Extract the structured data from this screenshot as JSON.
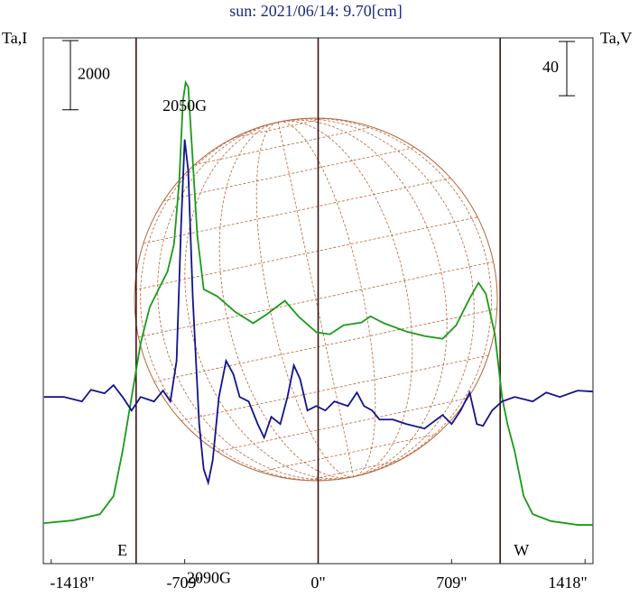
{
  "chart_data": {
    "type": "line",
    "title": "sun: 2021/06/14: 9.70[cm]",
    "ylabel": "Ta,I",
    "y2label": "Ta,V",
    "xlim": [
      -1460,
      1460
    ],
    "ylim": [
      -1200,
      14000
    ],
    "y2lim": [
      -123,
      265
    ],
    "xticks": [
      {
        "value": -1418,
        "label": "-1418\""
      },
      {
        "value": -709,
        "label": "-709\""
      },
      {
        "value": 0,
        "label": "0\""
      },
      {
        "value": 709,
        "label": "709\""
      },
      {
        "value": 1418,
        "label": "1418\""
      }
    ],
    "vlines": [
      -967,
      0,
      967
    ],
    "ta_i_scale": 2000,
    "ta_v_scale": 40,
    "annotations": [
      {
        "text": "2050G",
        "x": -709,
        "y": 12000
      },
      {
        "text": "2090G",
        "x": -580,
        "y": -1650
      },
      {
        "text": "E",
        "x": -1040,
        "y": -860
      },
      {
        "text": "W",
        "x": 1080,
        "y": -860
      }
    ],
    "series": [
      {
        "name": "Ta,I",
        "color": "#1a9a1a",
        "axis": "y",
        "x": [
          -1456,
          -1303,
          -1159,
          -1087,
          -1039,
          -991,
          -943,
          -895,
          -848,
          -800,
          -766,
          -738,
          -718,
          -704,
          -690,
          -671,
          -642,
          -608,
          -536,
          -441,
          -345,
          -273,
          -177,
          -105,
          -10,
          62,
          134,
          230,
          278,
          350,
          469,
          565,
          661,
          733,
          805,
          852,
          891,
          939,
          977,
          1006,
          1044,
          1092,
          1140,
          1236,
          1379,
          1461
        ],
        "values": [
          -30,
          50,
          230,
          750,
          2050,
          3610,
          5170,
          6210,
          6730,
          7250,
          8030,
          9850,
          12190,
          12710,
          12580,
          10890,
          8290,
          6730,
          6530,
          6080,
          5750,
          6010,
          6400,
          5950,
          5490,
          5430,
          5690,
          5770,
          5950,
          5750,
          5510,
          5380,
          5300,
          5690,
          6470,
          6920,
          6600,
          5430,
          3610,
          2830,
          2050,
          750,
          230,
          30,
          -80,
          -80
        ]
      },
      {
        "name": "Ta,V",
        "color": "#10148a",
        "axis": "y2",
        "x": [
          -1456,
          -1351,
          -1255,
          -1207,
          -1135,
          -1087,
          -1039,
          -991,
          -943,
          -872,
          -824,
          -785,
          -752,
          -728,
          -709,
          -690,
          -666,
          -632,
          -608,
          -584,
          -560,
          -527,
          -489,
          -450,
          -417,
          -369,
          -321,
          -287,
          -249,
          -201,
          -163,
          -129,
          -96,
          -57,
          -10,
          38,
          86,
          158,
          206,
          244,
          287,
          326,
          398,
          469,
          565,
          661,
          709,
          757,
          805,
          843,
          876,
          924,
          977,
          1044,
          1140,
          1212,
          1284,
          1379,
          1461
        ],
        "values": [
          0,
          0,
          -3.3,
          5.3,
          2.7,
          8.7,
          0,
          -10,
          0,
          -3.3,
          4.7,
          -3.3,
          26.7,
          126.7,
          190,
          166.7,
          73.3,
          -20,
          -53.3,
          -63.3,
          -46.7,
          0,
          26.7,
          16.7,
          0,
          -3.3,
          -20,
          -30,
          -14.7,
          -20,
          0,
          23.3,
          13.3,
          -10,
          -6.7,
          -10,
          -3.3,
          -6.7,
          3.3,
          -6.7,
          -10,
          -16.7,
          -16.7,
          -20,
          -23.3,
          -13.3,
          -20,
          -10,
          3.3,
          -20,
          -21.3,
          -10,
          -3.3,
          0,
          -3.3,
          3.3,
          0,
          4.7,
          4
        ]
      }
    ]
  }
}
